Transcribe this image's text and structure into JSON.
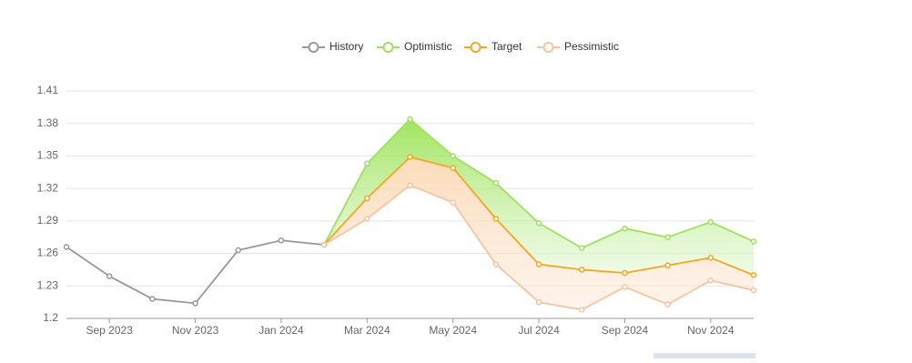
{
  "chart_data": {
    "type": "line",
    "categories": [
      null,
      "Sep 2023",
      null,
      "Nov 2023",
      null,
      "Jan 2024",
      null,
      "Mar 2024",
      null,
      "May 2024",
      null,
      "Jul 2024",
      null,
      "Sep 2024",
      null,
      "Nov 2024",
      null
    ],
    "series": [
      {
        "name": "History",
        "color": "#999999",
        "values": [
          1.266,
          1.239,
          1.218,
          1.214,
          1.263,
          1.272,
          1.268,
          null,
          null,
          null,
          null,
          null,
          null,
          null,
          null,
          null,
          null
        ]
      },
      {
        "name": "Optimistic",
        "color": "#a0e05f",
        "values": [
          null,
          null,
          null,
          null,
          null,
          null,
          1.268,
          1.343,
          1.384,
          1.35,
          1.325,
          1.288,
          1.265,
          1.283,
          1.275,
          1.289,
          1.271
        ]
      },
      {
        "name": "Target",
        "color": "#f5a623",
        "values": [
          null,
          null,
          null,
          null,
          null,
          null,
          1.268,
          1.311,
          1.349,
          1.339,
          1.292,
          1.25,
          1.245,
          1.242,
          1.249,
          1.256,
          1.24
        ]
      },
      {
        "name": "Pessimistic",
        "color": "#f8c4a0",
        "values": [
          null,
          null,
          null,
          null,
          null,
          null,
          1.268,
          1.292,
          1.323,
          1.307,
          1.25,
          1.215,
          1.208,
          1.229,
          1.213,
          1.235,
          1.226
        ]
      }
    ],
    "ylim": [
      1.2,
      1.41
    ],
    "yticks": [
      {
        "value": 1.2,
        "label": "1.2"
      },
      1.23,
      1.26,
      1.29,
      1.32,
      1.35,
      1.38,
      1.41
    ],
    "grid": true
  }
}
